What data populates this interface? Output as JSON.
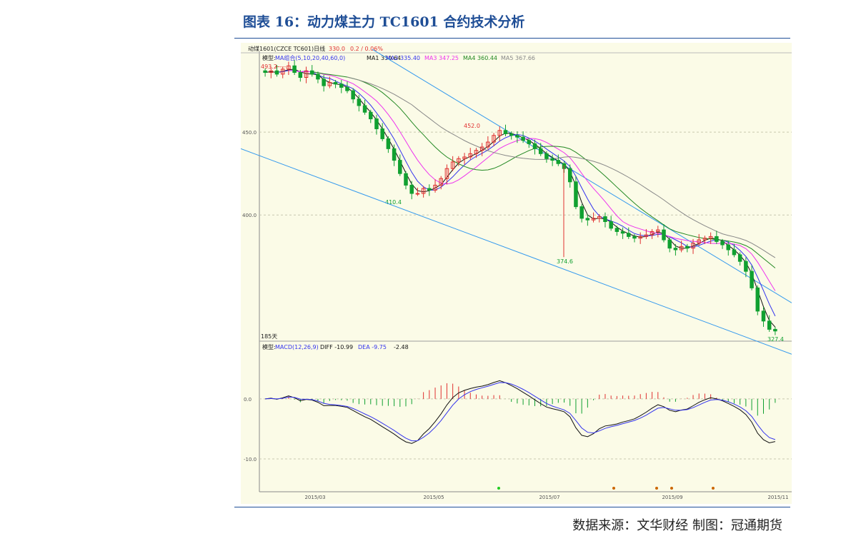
{
  "figure": {
    "title": "图表 16：动力煤主力 TC1601 合约技术分析",
    "source": "数据来源：文华财经 制图：冠通期货"
  },
  "header": {
    "name": "动煤1601(CZCE TC601)日线",
    "price": "330.0",
    "change": "0.2 / 0.06%",
    "model_label": "模型:",
    "ma_model": "MA组合(5,10,20,40,60,0)",
    "ma1": "MA1 330.64",
    "ma2": "MA2 335.40",
    "ma3": "MA3 347.25",
    "ma4": "MA4 360.44",
    "ma5": "MA5 367.66",
    "days_label": "185天"
  },
  "macd_header": {
    "model": "模型:",
    "label": "MACD(12,26,9)",
    "diff": "DIFF -10.99",
    "dea": "DEA -9.75",
    "macd": "-2.48"
  },
  "annotations": {
    "high": "493.2",
    "arrow": "←---",
    "mid_high": "452.0",
    "low1": "410.4",
    "low2": "374.6",
    "low3": "327.4"
  },
  "colors": {
    "title": "#1f4e96",
    "up": "#e03030",
    "down": "#10a030",
    "ma1": "#101010",
    "ma2": "#3333ee",
    "ma3": "#ee33ee",
    "ma4": "#228822",
    "ma5": "#888888",
    "trend": "#3399ee"
  },
  "chart_data": {
    "type": "candlestick",
    "x_ticks": [
      "2015/03",
      "2015/05",
      "2015/07",
      "2015/09",
      "2015/11"
    ],
    "price_panel": {
      "y_ticks": [
        "450.0",
        "400.0"
      ],
      "ylim": [
        323,
        497
      ],
      "close": [
        486,
        487,
        485,
        488,
        490,
        486,
        483,
        487,
        485,
        482,
        478,
        480,
        479,
        477,
        475,
        470,
        466,
        462,
        458,
        452,
        446,
        440,
        433,
        425,
        418,
        413,
        413,
        416,
        415,
        418,
        422,
        428,
        432,
        434,
        435,
        437,
        439,
        441,
        444,
        448,
        451,
        449,
        448,
        447,
        445,
        443,
        440,
        437,
        434,
        433,
        431,
        428,
        420,
        405,
        398,
        397,
        398,
        399,
        396,
        392,
        390,
        389,
        387,
        386,
        387,
        388,
        390,
        391,
        385,
        380,
        379,
        381,
        380,
        383,
        385,
        386,
        387,
        384,
        382,
        379,
        376,
        372,
        366,
        356,
        342,
        336,
        331,
        330
      ],
      "low_marks": [
        {
          "label": "410.4",
          "value": 410.4
        },
        {
          "label": "374.6",
          "value": 374.6
        },
        {
          "label": "327.4",
          "value": 327.4
        }
      ],
      "high_marks": [
        {
          "label": "493.2",
          "value": 493.2
        },
        {
          "label": "452.0",
          "value": 452.0
        }
      ]
    },
    "macd_panel": {
      "y_ticks": [
        "0.0",
        "-10.0"
      ],
      "ylim": [
        -15,
        7
      ],
      "diff_last": -10.99,
      "dea_last": -9.75,
      "macd_last": -2.48
    }
  }
}
